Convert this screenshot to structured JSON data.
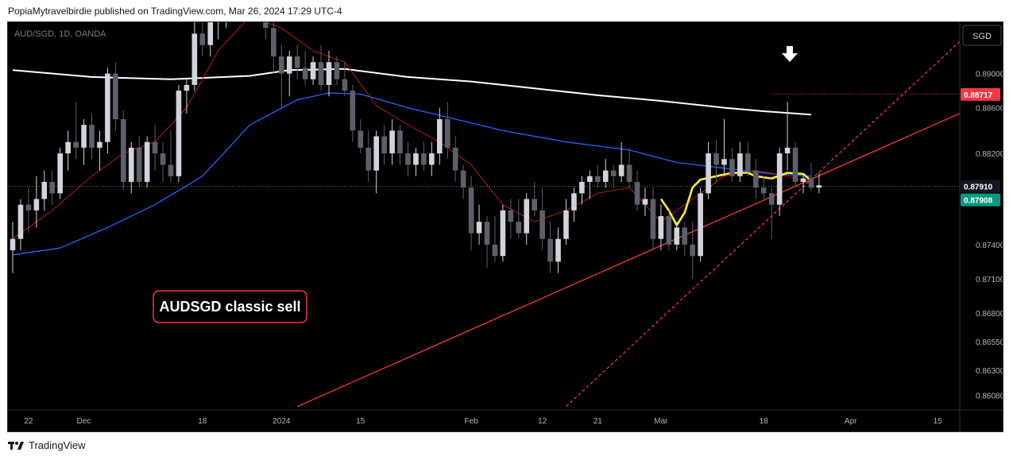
{
  "header": {
    "publisher_line": "PopiaMytravelbirdie published on TradingView.com, Mar 26, 2024 17:29 UTC-4"
  },
  "footer": {
    "brand": "TradingView",
    "logo_icon": "tradingview-logo-icon"
  },
  "chart": {
    "symbol_line": "AUD/SGD, 1D, OANDA",
    "currency_button": "SGD",
    "annotation": "AUDSGD classic sell",
    "arrow_icon": "down-arrow-icon",
    "colors": {
      "background": "#000000",
      "up_candle": "#d1d4dc",
      "down_candle": "#5d606b",
      "ma_white": "#ffffff",
      "ma_blue": "#2962ff",
      "ma_red": "#b71c1c",
      "ma_yellow": "#ffeb3b",
      "trendline": "#f23645",
      "annotation_border": "#f23645",
      "price_tag_red": "#f23645",
      "price_tag_dark": "#131722",
      "price_tag_green": "#089981"
    }
  },
  "chart_data": {
    "type": "candlestick",
    "symbol": "AUD/SGD",
    "timeframe": "1D",
    "source": "OANDA",
    "ylim": [
      0.8595,
      0.8935
    ],
    "y_ticks": [
      0.8608,
      0.863,
      0.8655,
      0.868,
      0.871,
      0.874,
      0.8791,
      0.882,
      0.886,
      0.889
    ],
    "y_tick_labels": [
      "0.86080",
      "0.86300",
      "0.86550",
      "0.86800",
      "0.87100",
      "0.87400",
      "",
      "0.88200",
      "0.88600",
      "0.89000"
    ],
    "x_labels": [
      {
        "label": "22",
        "bar": 2
      },
      {
        "label": "Dec",
        "bar": 9
      },
      {
        "label": "18",
        "bar": 24
      },
      {
        "label": "2024",
        "bar": 34
      },
      {
        "label": "15",
        "bar": 44
      },
      {
        "label": "Feb",
        "bar": 58
      },
      {
        "label": "12",
        "bar": 67
      },
      {
        "label": "21",
        "bar": 74
      },
      {
        "label": "Mar",
        "bar": 82
      },
      {
        "label": "18",
        "bar": 95
      },
      {
        "label": "Apr",
        "bar": 106
      },
      {
        "label": "15",
        "bar": 117
      }
    ],
    "candles": [
      [
        0.8735,
        0.876,
        0.8715,
        0.8745
      ],
      [
        0.8745,
        0.878,
        0.8735,
        0.8775
      ],
      [
        0.8775,
        0.879,
        0.875,
        0.877
      ],
      [
        0.877,
        0.88,
        0.8755,
        0.878
      ],
      [
        0.878,
        0.8805,
        0.877,
        0.8795
      ],
      [
        0.8795,
        0.8805,
        0.8775,
        0.8785
      ],
      [
        0.8785,
        0.8825,
        0.878,
        0.882
      ],
      [
        0.882,
        0.884,
        0.8805,
        0.883
      ],
      [
        0.883,
        0.8865,
        0.8815,
        0.8825
      ],
      [
        0.8825,
        0.885,
        0.881,
        0.8845
      ],
      [
        0.8845,
        0.8855,
        0.8815,
        0.8825
      ],
      [
        0.8825,
        0.884,
        0.8805,
        0.883
      ],
      [
        0.883,
        0.8895,
        0.882,
        0.889
      ],
      [
        0.889,
        0.89,
        0.884,
        0.885
      ],
      [
        0.885,
        0.8858,
        0.8788,
        0.8795
      ],
      [
        0.8795,
        0.883,
        0.8785,
        0.8825
      ],
      [
        0.8825,
        0.8835,
        0.879,
        0.8795
      ],
      [
        0.8795,
        0.8835,
        0.879,
        0.883
      ],
      [
        0.883,
        0.8845,
        0.8805,
        0.882
      ],
      [
        0.882,
        0.883,
        0.8795,
        0.881
      ],
      [
        0.881,
        0.884,
        0.8795,
        0.88
      ],
      [
        0.88,
        0.888,
        0.8795,
        0.8875
      ],
      [
        0.8875,
        0.8885,
        0.8855,
        0.888
      ],
      [
        0.888,
        0.8935,
        0.8875,
        0.8925
      ],
      [
        0.8925,
        0.8945,
        0.8905,
        0.8915
      ],
      [
        0.8915,
        0.8945,
        0.8905,
        0.894
      ],
      [
        0.894,
        0.895,
        0.892,
        0.8945
      ],
      [
        0.8945,
        0.8955,
        0.893,
        0.895
      ],
      [
        0.895,
        0.896,
        0.8935,
        0.8955
      ],
      [
        0.8955,
        0.8962,
        0.894,
        0.8958
      ],
      [
        0.8958,
        0.8965,
        0.8945,
        0.896
      ],
      [
        0.896,
        0.8965,
        0.894,
        0.895
      ],
      [
        0.895,
        0.896,
        0.892,
        0.893
      ],
      [
        0.893,
        0.894,
        0.889,
        0.8905
      ],
      [
        0.8905,
        0.8915,
        0.886,
        0.889
      ],
      [
        0.889,
        0.891,
        0.887,
        0.8905
      ],
      [
        0.8905,
        0.8915,
        0.8885,
        0.8895
      ],
      [
        0.8895,
        0.891,
        0.888,
        0.8885
      ],
      [
        0.8885,
        0.8905,
        0.888,
        0.89
      ],
      [
        0.89,
        0.8915,
        0.8875,
        0.888
      ],
      [
        0.888,
        0.891,
        0.887,
        0.89
      ],
      [
        0.89,
        0.8905,
        0.888,
        0.8885
      ],
      [
        0.8885,
        0.89,
        0.887,
        0.8875
      ],
      [
        0.8875,
        0.888,
        0.883,
        0.884
      ],
      [
        0.884,
        0.885,
        0.882,
        0.8825
      ],
      [
        0.8825,
        0.884,
        0.8795,
        0.8805
      ],
      [
        0.8805,
        0.884,
        0.8785,
        0.8835
      ],
      [
        0.8835,
        0.8845,
        0.881,
        0.882
      ],
      [
        0.882,
        0.885,
        0.881,
        0.884
      ],
      [
        0.884,
        0.8845,
        0.881,
        0.882
      ],
      [
        0.882,
        0.883,
        0.88,
        0.881
      ],
      [
        0.881,
        0.8825,
        0.88,
        0.882
      ],
      [
        0.882,
        0.883,
        0.8805,
        0.881
      ],
      [
        0.881,
        0.883,
        0.88,
        0.882
      ],
      [
        0.882,
        0.886,
        0.881,
        0.885
      ],
      [
        0.885,
        0.8865,
        0.8815,
        0.8825
      ],
      [
        0.8825,
        0.8835,
        0.8795,
        0.8805
      ],
      [
        0.8805,
        0.881,
        0.878,
        0.879
      ],
      [
        0.879,
        0.88,
        0.8735,
        0.875
      ],
      [
        0.875,
        0.8775,
        0.874,
        0.876
      ],
      [
        0.876,
        0.8765,
        0.872,
        0.874
      ],
      [
        0.874,
        0.8765,
        0.8725,
        0.873
      ],
      [
        0.873,
        0.8775,
        0.8725,
        0.877
      ],
      [
        0.877,
        0.878,
        0.8745,
        0.876
      ],
      [
        0.876,
        0.878,
        0.8745,
        0.875
      ],
      [
        0.875,
        0.8785,
        0.874,
        0.878
      ],
      [
        0.878,
        0.8795,
        0.8765,
        0.877
      ],
      [
        0.877,
        0.879,
        0.8735,
        0.8745
      ],
      [
        0.8745,
        0.876,
        0.8715,
        0.8725
      ],
      [
        0.8725,
        0.8755,
        0.8715,
        0.8745
      ],
      [
        0.8745,
        0.878,
        0.874,
        0.877
      ],
      [
        0.877,
        0.879,
        0.876,
        0.8785
      ],
      [
        0.8785,
        0.88,
        0.8775,
        0.8795
      ],
      [
        0.8795,
        0.8805,
        0.878,
        0.88
      ],
      [
        0.88,
        0.881,
        0.879,
        0.8795
      ],
      [
        0.8795,
        0.8815,
        0.879,
        0.8805
      ],
      [
        0.8805,
        0.881,
        0.879,
        0.88
      ],
      [
        0.88,
        0.883,
        0.8795,
        0.881
      ],
      [
        0.881,
        0.8825,
        0.879,
        0.8795
      ],
      [
        0.8795,
        0.8805,
        0.877,
        0.8775
      ],
      [
        0.8775,
        0.879,
        0.8765,
        0.878
      ],
      [
        0.878,
        0.879,
        0.8735,
        0.8745
      ],
      [
        0.8745,
        0.8775,
        0.8735,
        0.8765
      ],
      [
        0.8765,
        0.877,
        0.8735,
        0.874
      ],
      [
        0.874,
        0.876,
        0.8735,
        0.8755
      ],
      [
        0.8755,
        0.876,
        0.873,
        0.874
      ],
      [
        0.874,
        0.876,
        0.871,
        0.873
      ],
      [
        0.873,
        0.879,
        0.8725,
        0.8785
      ],
      [
        0.8785,
        0.883,
        0.878,
        0.882
      ],
      [
        0.882,
        0.8832,
        0.8795,
        0.881
      ],
      [
        0.881,
        0.885,
        0.88,
        0.8815
      ],
      [
        0.8815,
        0.8825,
        0.8795,
        0.88
      ],
      [
        0.88,
        0.883,
        0.8795,
        0.882
      ],
      [
        0.882,
        0.883,
        0.88,
        0.8805
      ],
      [
        0.8805,
        0.8815,
        0.878,
        0.879
      ],
      [
        0.879,
        0.88,
        0.878,
        0.8785
      ],
      [
        0.8785,
        0.879,
        0.8745,
        0.8775
      ],
      [
        0.8775,
        0.8825,
        0.8765,
        0.882
      ],
      [
        0.882,
        0.8865,
        0.8805,
        0.8825
      ],
      [
        0.8825,
        0.883,
        0.879,
        0.8795
      ],
      [
        0.8795,
        0.88,
        0.8785,
        0.8798
      ],
      [
        0.8798,
        0.8812,
        0.8787,
        0.879
      ],
      [
        0.879,
        0.8803,
        0.8785,
        0.8792
      ]
    ],
    "moving_averages": [
      {
        "key": "ma-white",
        "points": [
          [
            0,
            0.8893
          ],
          [
            10,
            0.8887
          ],
          [
            20,
            0.8885
          ],
          [
            30,
            0.8888
          ],
          [
            35,
            0.8893
          ],
          [
            42,
            0.8894
          ],
          [
            50,
            0.8887
          ],
          [
            58,
            0.8883
          ],
          [
            66,
            0.8877
          ],
          [
            74,
            0.8871
          ],
          [
            82,
            0.8866
          ],
          [
            90,
            0.886
          ],
          [
            95,
            0.8857
          ],
          [
            101,
            0.8854
          ]
        ]
      },
      {
        "key": "ma-blue",
        "points": [
          [
            0,
            0.8731
          ],
          [
            6,
            0.8737
          ],
          [
            12,
            0.8755
          ],
          [
            18,
            0.8775
          ],
          [
            24,
            0.88
          ],
          [
            30,
            0.8845
          ],
          [
            36,
            0.8867
          ],
          [
            40,
            0.8873
          ],
          [
            44,
            0.8872
          ],
          [
            50,
            0.886
          ],
          [
            56,
            0.885
          ],
          [
            62,
            0.884
          ],
          [
            70,
            0.883
          ],
          [
            78,
            0.8823
          ],
          [
            84,
            0.8812
          ],
          [
            90,
            0.8807
          ],
          [
            96,
            0.8802
          ],
          [
            101,
            0.88
          ]
        ]
      },
      {
        "key": "ma-red",
        "points": [
          [
            0,
            0.8745
          ],
          [
            5,
            0.877
          ],
          [
            10,
            0.88
          ],
          [
            14,
            0.882
          ],
          [
            18,
            0.883
          ],
          [
            22,
            0.886
          ],
          [
            26,
            0.891
          ],
          [
            30,
            0.894
          ],
          [
            34,
            0.893
          ],
          [
            38,
            0.891
          ],
          [
            42,
            0.89
          ],
          [
            46,
            0.8862
          ],
          [
            50,
            0.8845
          ],
          [
            54,
            0.883
          ],
          [
            58,
            0.881
          ],
          [
            62,
            0.8775
          ],
          [
            66,
            0.876
          ],
          [
            70,
            0.877
          ],
          [
            74,
            0.8785
          ],
          [
            78,
            0.879
          ],
          [
            82,
            0.876
          ],
          [
            86,
            0.878
          ],
          [
            90,
            0.88
          ],
          [
            94,
            0.8805
          ],
          [
            98,
            0.88
          ],
          [
            101,
            0.8794
          ]
        ]
      },
      {
        "key": "ma-yellow",
        "points": [
          [
            82,
            0.878
          ],
          [
            83,
            0.877
          ],
          [
            84,
            0.8757
          ],
          [
            85,
            0.8768
          ],
          [
            86,
            0.879
          ],
          [
            87,
            0.8797
          ],
          [
            89,
            0.88
          ],
          [
            91,
            0.8803
          ],
          [
            93,
            0.8803
          ],
          [
            94,
            0.88
          ],
          [
            96,
            0.8798
          ],
          [
            98,
            0.8803
          ],
          [
            100,
            0.8802
          ],
          [
            101,
            0.8796
          ]
        ]
      }
    ],
    "trendlines": [
      {
        "key": "trend-support-red",
        "style": "solid",
        "from": [
          36,
          0.8598
        ],
        "to": [
          123,
          0.8855
        ]
      },
      {
        "key": "trend-steep-dashed",
        "style": "dashed",
        "from": [
          70,
          0.8598
        ],
        "to": [
          123,
          0.8918
        ]
      },
      {
        "key": "resistance-dotted",
        "style": "dotted",
        "from": [
          96,
          0.8872
        ],
        "to": [
          123,
          0.8872
        ]
      },
      {
        "key": "last-price-dotted",
        "style": "dotted",
        "from": [
          0,
          0.8791
        ],
        "to": [
          123,
          0.8791
        ]
      }
    ],
    "price_tags": [
      {
        "label": "0.88717",
        "value": 0.88717,
        "color": "#f23645"
      },
      {
        "label": "0.87910",
        "value": 0.8791,
        "color": "#131722"
      },
      {
        "label": "0.87908",
        "value": 0.87908,
        "color": "#089981"
      }
    ],
    "sell_arrow": {
      "bar": 100,
      "value": 0.8905
    }
  }
}
